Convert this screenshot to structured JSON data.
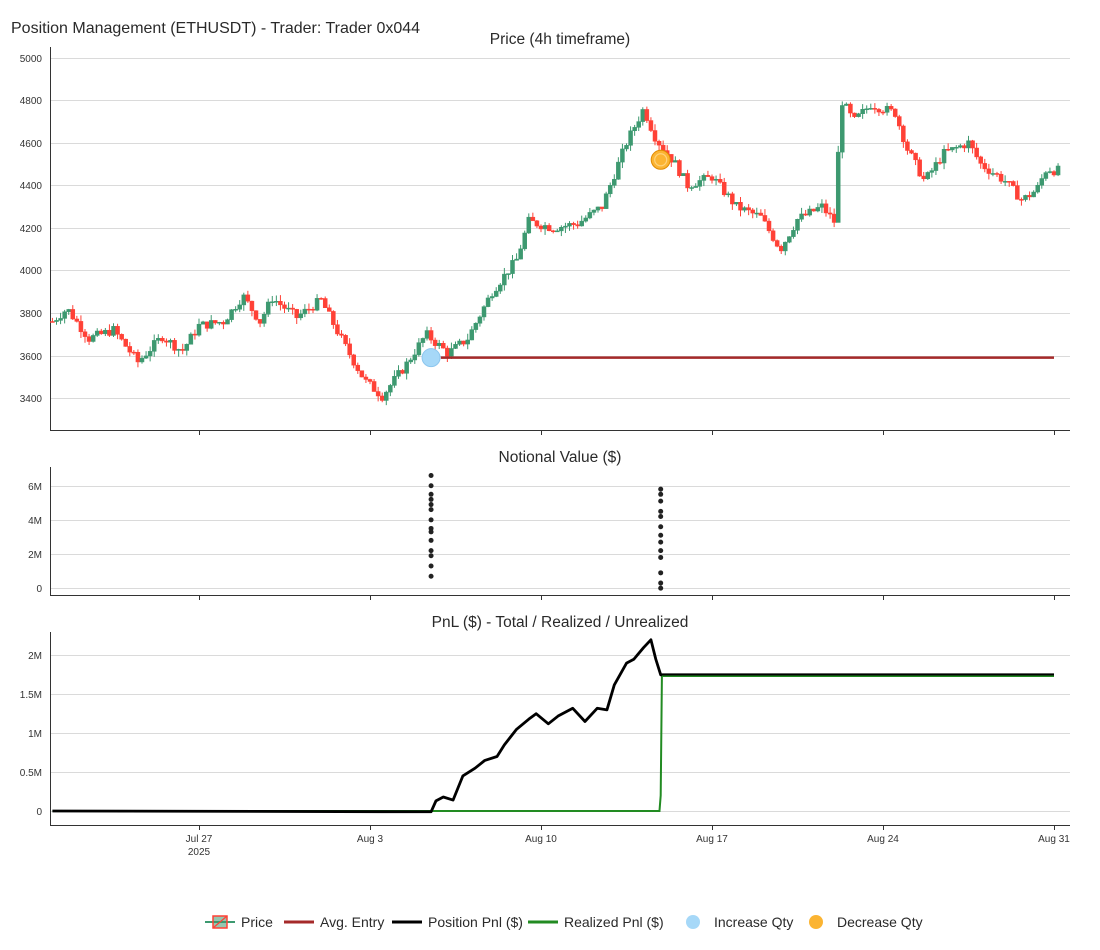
{
  "title": "Position Management (ETHUSDT) - Trader: Trader 0x044",
  "chart_data": [
    {
      "type": "candlestick",
      "title": "Price (4h timeframe)",
      "x_range": [
        "2025-07-21",
        "2025-08-31"
      ],
      "ylim": [
        3250,
        5050
      ],
      "yticks": [
        3400,
        3600,
        3800,
        4000,
        4200,
        4400,
        4600,
        4800,
        5000
      ],
      "grid": true,
      "anchors": [
        [
          "2025-07-21",
          3760
        ],
        [
          "2025-07-21.6",
          3820
        ],
        [
          "2025-07-22.5",
          3680
        ],
        [
          "2025-07-23.5",
          3720
        ],
        [
          "2025-07-24.5",
          3570
        ],
        [
          "2025-07-25.5",
          3690
        ],
        [
          "2025-07-26.3",
          3620
        ],
        [
          "2025-07-27",
          3740
        ],
        [
          "2025-07-28",
          3760
        ],
        [
          "2025-07-28.8",
          3880
        ],
        [
          "2025-07-29.5",
          3760
        ],
        [
          "2025-07-30",
          3870
        ],
        [
          "2025-07-31",
          3780
        ],
        [
          "2025-08-01",
          3860
        ],
        [
          "2025-08-02",
          3640
        ],
        [
          "2025-08-02.8",
          3480
        ],
        [
          "2025-08-03.5",
          3410
        ],
        [
          "2025-08-04.5",
          3560
        ],
        [
          "2025-08-05.3",
          3700
        ],
        [
          "2025-08-06.2",
          3610
        ],
        [
          "2025-08-07",
          3680
        ],
        [
          "2025-08-08",
          3900
        ],
        [
          "2025-08-09",
          4050
        ],
        [
          "2025-08-09.5",
          4230
        ],
        [
          "2025-08-10.5",
          4200
        ],
        [
          "2025-08-11.5",
          4220
        ],
        [
          "2025-08-12.5",
          4300
        ],
        [
          "2025-08-13.5",
          4600
        ],
        [
          "2025-08-14.2",
          4760
        ],
        [
          "2025-08-14.7",
          4620
        ],
        [
          "2025-08-15.5",
          4500
        ],
        [
          "2025-08-16",
          4400
        ],
        [
          "2025-08-17",
          4440
        ],
        [
          "2025-08-18",
          4300
        ],
        [
          "2025-08-19",
          4250
        ],
        [
          "2025-08-19.8",
          4100
        ],
        [
          "2025-08-20.5",
          4240
        ],
        [
          "2025-08-21.5",
          4300
        ],
        [
          "2025-08-22",
          4230
        ],
        [
          "2025-08-22.3",
          4800
        ],
        [
          "2025-08-22.8",
          4700
        ],
        [
          "2025-08-23.5",
          4780
        ],
        [
          "2025-08-24.5",
          4740
        ],
        [
          "2025-08-25",
          4570
        ],
        [
          "2025-08-25.7",
          4420
        ],
        [
          "2025-08-26.5",
          4550
        ],
        [
          "2025-08-27.5",
          4600
        ],
        [
          "2025-08-28",
          4500
        ],
        [
          "2025-08-29",
          4420
        ],
        [
          "2025-08-29.7",
          4330
        ],
        [
          "2025-08-30.3",
          4380
        ],
        [
          "2025-08-30.7",
          4480
        ],
        [
          "2025-08-31",
          4470
        ]
      ],
      "series": [
        {
          "name": "Price",
          "type": "candlestick",
          "up_color": "#3d9970",
          "down_color": "#ff4136"
        },
        {
          "name": "Avg. Entry",
          "type": "step",
          "color": "#a52a2a",
          "points": [
            [
              "2025-08-05.9",
              3590
            ],
            [
              "2025-08-31",
              3590
            ]
          ]
        },
        {
          "name": "Increase Qty",
          "type": "marker",
          "color": "#a6d8f8",
          "points": [
            [
              "2025-08-05.5",
              3590
            ]
          ]
        },
        {
          "name": "Decrease Qty",
          "type": "marker",
          "color": "#fbb432",
          "points": [
            [
              "2025-08-14.9",
              4520
            ]
          ]
        }
      ]
    },
    {
      "type": "scatter",
      "title": "Notional Value ($)",
      "ylim": [
        -0.4,
        7.1
      ],
      "yticks": [
        0,
        2,
        4,
        6
      ],
      "ytick_labels": [
        "0",
        "2M",
        "4M",
        "6M"
      ],
      "units": "M",
      "grid": true,
      "series": [
        {
          "name": "Notional",
          "color": "#222222",
          "points": [
            [
              "2025-08-05.5",
              6.6
            ],
            [
              "2025-08-05.5",
              6.0
            ],
            [
              "2025-08-05.5",
              5.5
            ],
            [
              "2025-08-05.5",
              5.2
            ],
            [
              "2025-08-05.5",
              4.9
            ],
            [
              "2025-08-05.5",
              4.6
            ],
            [
              "2025-08-05.5",
              4.0
            ],
            [
              "2025-08-05.5",
              3.5
            ],
            [
              "2025-08-05.5",
              3.3
            ],
            [
              "2025-08-05.5",
              2.8
            ],
            [
              "2025-08-05.5",
              2.2
            ],
            [
              "2025-08-05.5",
              1.9
            ],
            [
              "2025-08-05.5",
              1.3
            ],
            [
              "2025-08-05.5",
              0.7
            ],
            [
              "2025-08-14.9",
              5.8
            ],
            [
              "2025-08-14.9",
              5.5
            ],
            [
              "2025-08-14.9",
              5.1
            ],
            [
              "2025-08-14.9",
              4.5
            ],
            [
              "2025-08-14.9",
              4.2
            ],
            [
              "2025-08-14.9",
              3.6
            ],
            [
              "2025-08-14.9",
              3.1
            ],
            [
              "2025-08-14.9",
              2.7
            ],
            [
              "2025-08-14.9",
              2.2
            ],
            [
              "2025-08-14.9",
              1.8
            ],
            [
              "2025-08-14.9",
              0.9
            ],
            [
              "2025-08-14.9",
              0.3
            ],
            [
              "2025-08-14.9",
              0.0
            ]
          ]
        }
      ]
    },
    {
      "type": "line",
      "title": "PnL ($) - Total / Realized / Unrealized",
      "ylim": [
        -0.18,
        2.3
      ],
      "yticks": [
        0,
        0.5,
        1,
        1.5,
        2
      ],
      "ytick_labels": [
        "0",
        "0.5M",
        "1M",
        "1.5M",
        "2M"
      ],
      "units": "M",
      "grid": true,
      "series": [
        {
          "name": "Position Pnl ($)",
          "color": "#000000",
          "points": [
            [
              "2025-07-21",
              0
            ],
            [
              "2025-08-05.5",
              -0.01
            ],
            [
              "2025-08-05.7",
              0.13
            ],
            [
              "2025-08-06",
              0.18
            ],
            [
              "2025-08-06.4",
              0.14
            ],
            [
              "2025-08-06.8",
              0.45
            ],
            [
              "2025-08-07.3",
              0.55
            ],
            [
              "2025-08-07.7",
              0.65
            ],
            [
              "2025-08-08.2",
              0.7
            ],
            [
              "2025-08-08.5",
              0.85
            ],
            [
              "2025-08-09",
              1.05
            ],
            [
              "2025-08-09.5",
              1.18
            ],
            [
              "2025-08-09.8",
              1.25
            ],
            [
              "2025-08-10.3",
              1.12
            ],
            [
              "2025-08-10.7",
              1.22
            ],
            [
              "2025-08-11.3",
              1.32
            ],
            [
              "2025-08-11.8",
              1.15
            ],
            [
              "2025-08-12.3",
              1.32
            ],
            [
              "2025-08-12.7",
              1.3
            ],
            [
              "2025-08-13",
              1.62
            ],
            [
              "2025-08-13.5",
              1.9
            ],
            [
              "2025-08-13.8",
              1.95
            ],
            [
              "2025-08-14.2",
              2.1
            ],
            [
              "2025-08-14.5",
              2.2
            ],
            [
              "2025-08-14.7",
              1.95
            ],
            [
              "2025-08-14.9",
              1.75
            ],
            [
              "2025-08-31",
              1.75
            ]
          ]
        },
        {
          "name": "Realized Pnl ($)",
          "color": "#228b22",
          "points": [
            [
              "2025-07-21",
              0
            ],
            [
              "2025-08-14.85",
              0
            ],
            [
              "2025-08-14.9",
              0.2
            ],
            [
              "2025-08-14.95",
              1.75
            ],
            [
              "2025-08-31",
              1.75
            ]
          ]
        }
      ]
    }
  ],
  "x_axis": {
    "ticks": [
      {
        "date": "2025-07-27",
        "label": "Jul 27",
        "sublabel": "2025"
      },
      {
        "date": "2025-08-03",
        "label": "Aug 3",
        "sublabel": ""
      },
      {
        "date": "2025-08-10",
        "label": "Aug 10",
        "sublabel": ""
      },
      {
        "date": "2025-08-17",
        "label": "Aug 17",
        "sublabel": ""
      },
      {
        "date": "2025-08-24",
        "label": "Aug 24",
        "sublabel": ""
      },
      {
        "date": "2025-08-31",
        "label": "Aug 31",
        "sublabel": ""
      }
    ]
  },
  "legend": {
    "placement": "bottom-center",
    "items": [
      {
        "name": "Price",
        "icon": "candlestick-icon",
        "color": "#3d9970"
      },
      {
        "name": "Avg. Entry",
        "icon": "line-icon",
        "color": "#a52a2a"
      },
      {
        "name": "Position Pnl ($)",
        "icon": "line-icon",
        "color": "#000000"
      },
      {
        "name": "Realized Pnl ($)",
        "icon": "line-icon",
        "color": "#228b22"
      },
      {
        "name": "Increase Qty",
        "icon": "circle-icon",
        "color": "#a6d8f8"
      },
      {
        "name": "Decrease Qty",
        "icon": "circle-icon",
        "color": "#fbb432"
      }
    ]
  }
}
